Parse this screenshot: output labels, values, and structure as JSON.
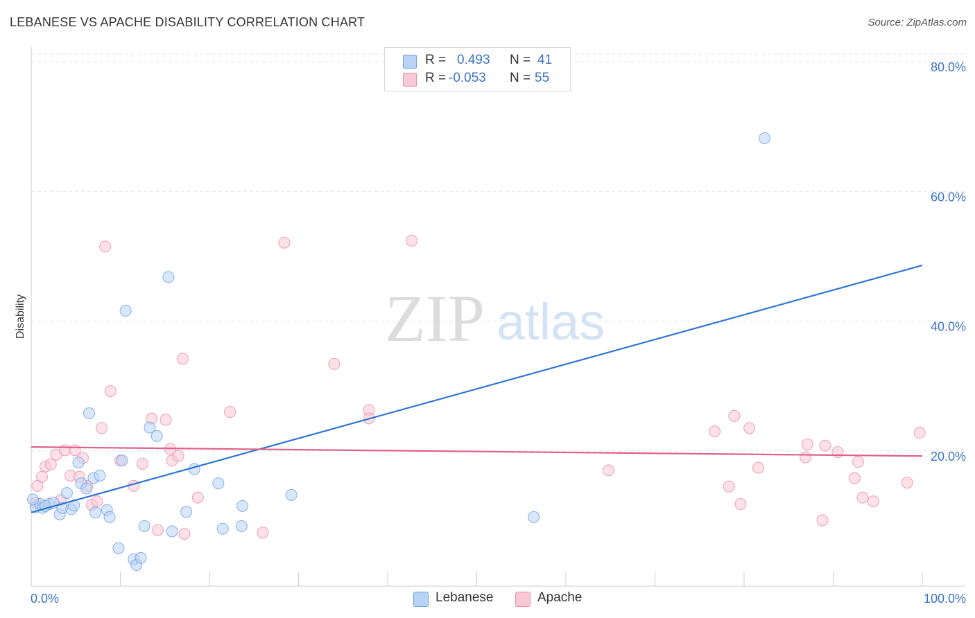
{
  "title": "LEBANESE VS APACHE DISABILITY CORRELATION CHART",
  "source": "Source: ZipAtlas.com",
  "watermark": {
    "zip": "ZIP",
    "atlas": "atlas"
  },
  "legend_stats": [
    {
      "r_label": "R =",
      "r_value": "0.493",
      "n_label": "N =",
      "n_value": "41",
      "color": "#b8d3f5",
      "border": "#6a9ee0"
    },
    {
      "r_label": "R =",
      "r_value": "-0.053",
      "n_label": "N =",
      "n_value": "55",
      "color": "#f9c8d6",
      "border": "#e88aa6"
    }
  ],
  "colors": {
    "lebanese_fill": "#b8d3f5",
    "lebanese_stroke": "#6a9ee0",
    "lebanese_line": "#2f74d0",
    "apache_fill": "#f9c8d6",
    "apache_stroke": "#e88aa6",
    "apache_line": "#e0608a",
    "tick_text": "#3b73c4",
    "grid": "#e3e3e3"
  },
  "chart_data": {
    "type": "scatter",
    "title": "LEBANESE VS APACHE DISABILITY CORRELATION CHART",
    "xlabel": "",
    "ylabel": "Disability",
    "xlim": [
      0,
      100
    ],
    "ylim": [
      0,
      80
    ],
    "x_tick_labels": [
      "0.0%",
      "100.0%"
    ],
    "y_ticks": [
      20,
      40,
      60,
      80
    ],
    "y_tick_labels": [
      "20.0%",
      "40.0%",
      "60.0%",
      "80.0%"
    ],
    "grid": "horizontal dashed",
    "legend_position": "bottom-center",
    "series": [
      {
        "name": "Lebanese",
        "trend": {
          "x": [
            0,
            100
          ],
          "y": [
            10.5,
            48.6
          ]
        },
        "points": [
          {
            "x": 0.5,
            "y": 11.3
          },
          {
            "x": 1.0,
            "y": 11.8
          },
          {
            "x": 1.3,
            "y": 11.2
          },
          {
            "x": 2.0,
            "y": 11.8
          },
          {
            "x": 2.5,
            "y": 12.0
          },
          {
            "x": 3.2,
            "y": 10.2
          },
          {
            "x": 3.5,
            "y": 11.2
          },
          {
            "x": 4.0,
            "y": 13.5
          },
          {
            "x": 4.5,
            "y": 11.0
          },
          {
            "x": 4.8,
            "y": 11.6
          },
          {
            "x": 5.3,
            "y": 18.2
          },
          {
            "x": 5.6,
            "y": 15.0
          },
          {
            "x": 6.2,
            "y": 14.2
          },
          {
            "x": 6.5,
            "y": 25.8
          },
          {
            "x": 7.0,
            "y": 15.8
          },
          {
            "x": 7.2,
            "y": 10.5
          },
          {
            "x": 7.7,
            "y": 16.2
          },
          {
            "x": 8.5,
            "y": 10.9
          },
          {
            "x": 8.8,
            "y": 9.8
          },
          {
            "x": 9.8,
            "y": 5.0
          },
          {
            "x": 10.2,
            "y": 18.5
          },
          {
            "x": 10.6,
            "y": 41.6
          },
          {
            "x": 11.5,
            "y": 3.3
          },
          {
            "x": 11.8,
            "y": 2.4
          },
          {
            "x": 12.3,
            "y": 3.5
          },
          {
            "x": 12.7,
            "y": 8.4
          },
          {
            "x": 13.3,
            "y": 23.6
          },
          {
            "x": 14.1,
            "y": 22.3
          },
          {
            "x": 15.4,
            "y": 46.8
          },
          {
            "x": 15.8,
            "y": 7.6
          },
          {
            "x": 17.4,
            "y": 10.6
          },
          {
            "x": 18.3,
            "y": 17.2
          },
          {
            "x": 21.0,
            "y": 15.0
          },
          {
            "x": 21.5,
            "y": 8.0
          },
          {
            "x": 23.7,
            "y": 11.5
          },
          {
            "x": 23.6,
            "y": 8.4
          },
          {
            "x": 29.2,
            "y": 13.2
          },
          {
            "x": 56.4,
            "y": 9.8
          },
          {
            "x": 82.3,
            "y": 68.2
          },
          {
            "x": 0.2,
            "y": 12.5
          },
          {
            "x": 1.6,
            "y": 11.5
          }
        ]
      },
      {
        "name": "Apache",
        "trend": {
          "x": [
            0,
            100
          ],
          "y": [
            20.6,
            19.2
          ]
        },
        "points": [
          {
            "x": 0.5,
            "y": 12.0
          },
          {
            "x": 0.7,
            "y": 14.6
          },
          {
            "x": 1.2,
            "y": 16.0
          },
          {
            "x": 1.6,
            "y": 17.6
          },
          {
            "x": 2.2,
            "y": 17.9
          },
          {
            "x": 2.8,
            "y": 19.4
          },
          {
            "x": 3.3,
            "y": 12.4
          },
          {
            "x": 3.8,
            "y": 20.1
          },
          {
            "x": 4.4,
            "y": 16.2
          },
          {
            "x": 4.9,
            "y": 20.1
          },
          {
            "x": 5.4,
            "y": 16.0
          },
          {
            "x": 5.8,
            "y": 18.9
          },
          {
            "x": 6.3,
            "y": 14.6
          },
          {
            "x": 6.8,
            "y": 11.7
          },
          {
            "x": 7.4,
            "y": 12.2
          },
          {
            "x": 7.9,
            "y": 23.5
          },
          {
            "x": 8.3,
            "y": 51.5
          },
          {
            "x": 8.9,
            "y": 29.2
          },
          {
            "x": 10.0,
            "y": 18.5
          },
          {
            "x": 11.5,
            "y": 14.6
          },
          {
            "x": 12.5,
            "y": 18.0
          },
          {
            "x": 13.5,
            "y": 25.0
          },
          {
            "x": 14.2,
            "y": 7.8
          },
          {
            "x": 15.1,
            "y": 24.8
          },
          {
            "x": 15.6,
            "y": 20.3
          },
          {
            "x": 15.8,
            "y": 18.5
          },
          {
            "x": 16.5,
            "y": 19.2
          },
          {
            "x": 17.0,
            "y": 34.2
          },
          {
            "x": 17.2,
            "y": 7.2
          },
          {
            "x": 18.7,
            "y": 12.8
          },
          {
            "x": 22.3,
            "y": 26.0
          },
          {
            "x": 26.0,
            "y": 7.4
          },
          {
            "x": 28.4,
            "y": 52.1
          },
          {
            "x": 34.0,
            "y": 33.4
          },
          {
            "x": 37.9,
            "y": 26.3
          },
          {
            "x": 37.9,
            "y": 25.0
          },
          {
            "x": 42.7,
            "y": 52.4
          },
          {
            "x": 64.8,
            "y": 17.0
          },
          {
            "x": 76.7,
            "y": 23.0
          },
          {
            "x": 78.3,
            "y": 14.5
          },
          {
            "x": 78.9,
            "y": 25.4
          },
          {
            "x": 79.6,
            "y": 11.8
          },
          {
            "x": 80.6,
            "y": 23.5
          },
          {
            "x": 81.6,
            "y": 17.4
          },
          {
            "x": 87.1,
            "y": 21.0
          },
          {
            "x": 86.9,
            "y": 19.0
          },
          {
            "x": 88.8,
            "y": 9.3
          },
          {
            "x": 89.1,
            "y": 20.8
          },
          {
            "x": 90.5,
            "y": 19.8
          },
          {
            "x": 92.4,
            "y": 15.8
          },
          {
            "x": 92.8,
            "y": 18.3
          },
          {
            "x": 93.3,
            "y": 12.8
          },
          {
            "x": 94.5,
            "y": 12.2
          },
          {
            "x": 98.3,
            "y": 15.1
          },
          {
            "x": 99.7,
            "y": 22.8
          }
        ]
      }
    ]
  }
}
